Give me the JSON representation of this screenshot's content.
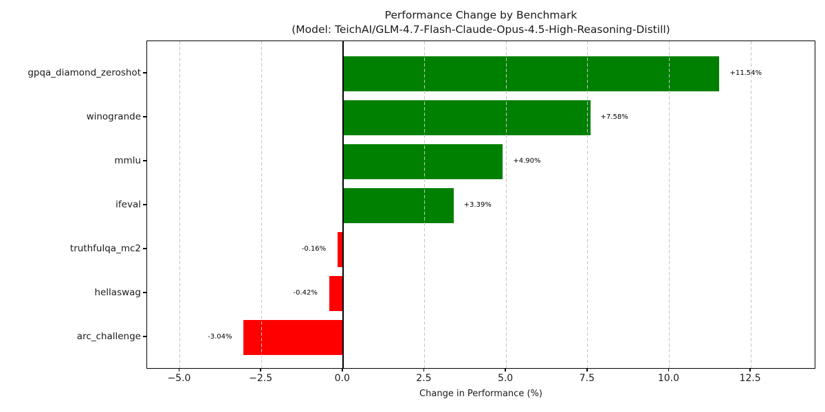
{
  "chart_data": {
    "type": "bar",
    "orientation": "horizontal",
    "title": "Performance Change by Benchmark",
    "subtitle": "(Model: TeichAI/GLM-4.7-Flash-Claude-Opus-4.5-High-Reasoning-Distill)",
    "xlabel": "Change in Performance (%)",
    "categories": [
      "gpqa_diamond_zeroshot",
      "winogrande",
      "mmlu",
      "ifeval",
      "truthfulqa_mc2",
      "hellaswag",
      "arc_challenge"
    ],
    "values": [
      11.54,
      7.58,
      4.9,
      3.39,
      -0.16,
      -0.42,
      -3.04
    ],
    "value_labels": [
      "+11.54%",
      "+7.58%",
      "+4.90%",
      "+3.39%",
      "-0.16%",
      "-0.42%",
      "-3.04%"
    ],
    "x_ticks": [
      -5.0,
      -2.5,
      0.0,
      2.5,
      5.0,
      7.5,
      10.0,
      12.5
    ],
    "x_tick_labels": [
      "−5.0",
      "−2.5",
      "0.0",
      "2.5",
      "5.0",
      "7.5",
      "10.0",
      "12.5"
    ],
    "xlim": [
      -6.0,
      14.5
    ],
    "grid": "vertical-dashed",
    "legend": "none",
    "colors": {
      "positive_bar": "#008000",
      "negative_bar": "#ff0000",
      "grid_line": "#c6c6c6",
      "zero_line": "#000000",
      "axis_border": "#000000",
      "background": "#ffffff",
      "text": "#1a1a1a"
    }
  }
}
